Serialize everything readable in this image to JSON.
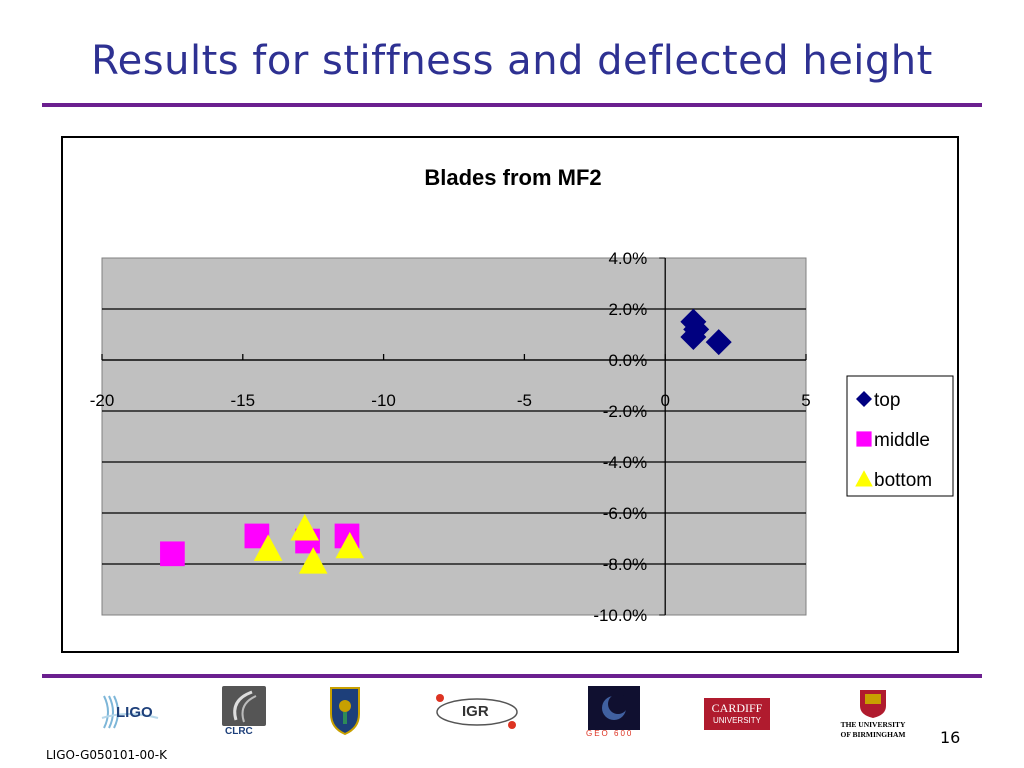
{
  "slide": {
    "title": "Results for stiffness and deflected height",
    "footer_id": "LIGO-G050101-00-K",
    "page_number": "16"
  },
  "logos": {
    "ligo": "LIGO",
    "clrc": "CLRC",
    "igr": "IGR",
    "geo": "GEO 600",
    "cardiff_line1": "CARDIFF",
    "cardiff_line2": "UNIVERSITY",
    "birmingham_line1": "THE UNIVERSITY",
    "birmingham_line2": "OF BIRMINGHAM"
  },
  "colors": {
    "title": "#2e3192",
    "rule": "#6b1f8f",
    "plot_bg": "#c0c0c0",
    "top": "#000080",
    "middle": "#ff00ff",
    "bottom": "#ffff00"
  },
  "chart_data": {
    "type": "scatter",
    "title": "Blades from MF2",
    "xlim": [
      -20,
      5
    ],
    "ylim": [
      -10,
      4
    ],
    "x_ticks": [
      -20,
      -15,
      -10,
      -5,
      0,
      5
    ],
    "y_ticks": [
      4,
      2,
      0,
      -2,
      -4,
      -6,
      -8,
      -10
    ],
    "x_tick_labels": [
      "-20",
      "-15",
      "-10",
      "-5",
      "0",
      "5"
    ],
    "y_tick_labels": [
      "4.0%",
      "2.0%",
      "0.0%",
      "-2.0%",
      "-4.0%",
      "-6.0%",
      "-8.0%",
      "-10.0%"
    ],
    "grid": "horizontal",
    "legend_position": "right",
    "series": [
      {
        "name": "top",
        "marker": "diamond",
        "color": "#000080",
        "points": [
          [
            1.0,
            1.5
          ],
          [
            1.1,
            1.2
          ],
          [
            1.0,
            0.9
          ],
          [
            1.9,
            0.7
          ]
        ]
      },
      {
        "name": "middle",
        "marker": "square",
        "color": "#ff00ff",
        "points": [
          [
            -17.5,
            -7.6
          ],
          [
            -14.5,
            -6.9
          ],
          [
            -12.7,
            -7.1
          ],
          [
            -11.3,
            -6.9
          ]
        ]
      },
      {
        "name": "bottom",
        "marker": "triangle",
        "color": "#ffff00",
        "points": [
          [
            -14.1,
            -7.4
          ],
          [
            -12.8,
            -6.6
          ],
          [
            -12.5,
            -7.9
          ],
          [
            -11.2,
            -7.3
          ]
        ]
      }
    ]
  }
}
